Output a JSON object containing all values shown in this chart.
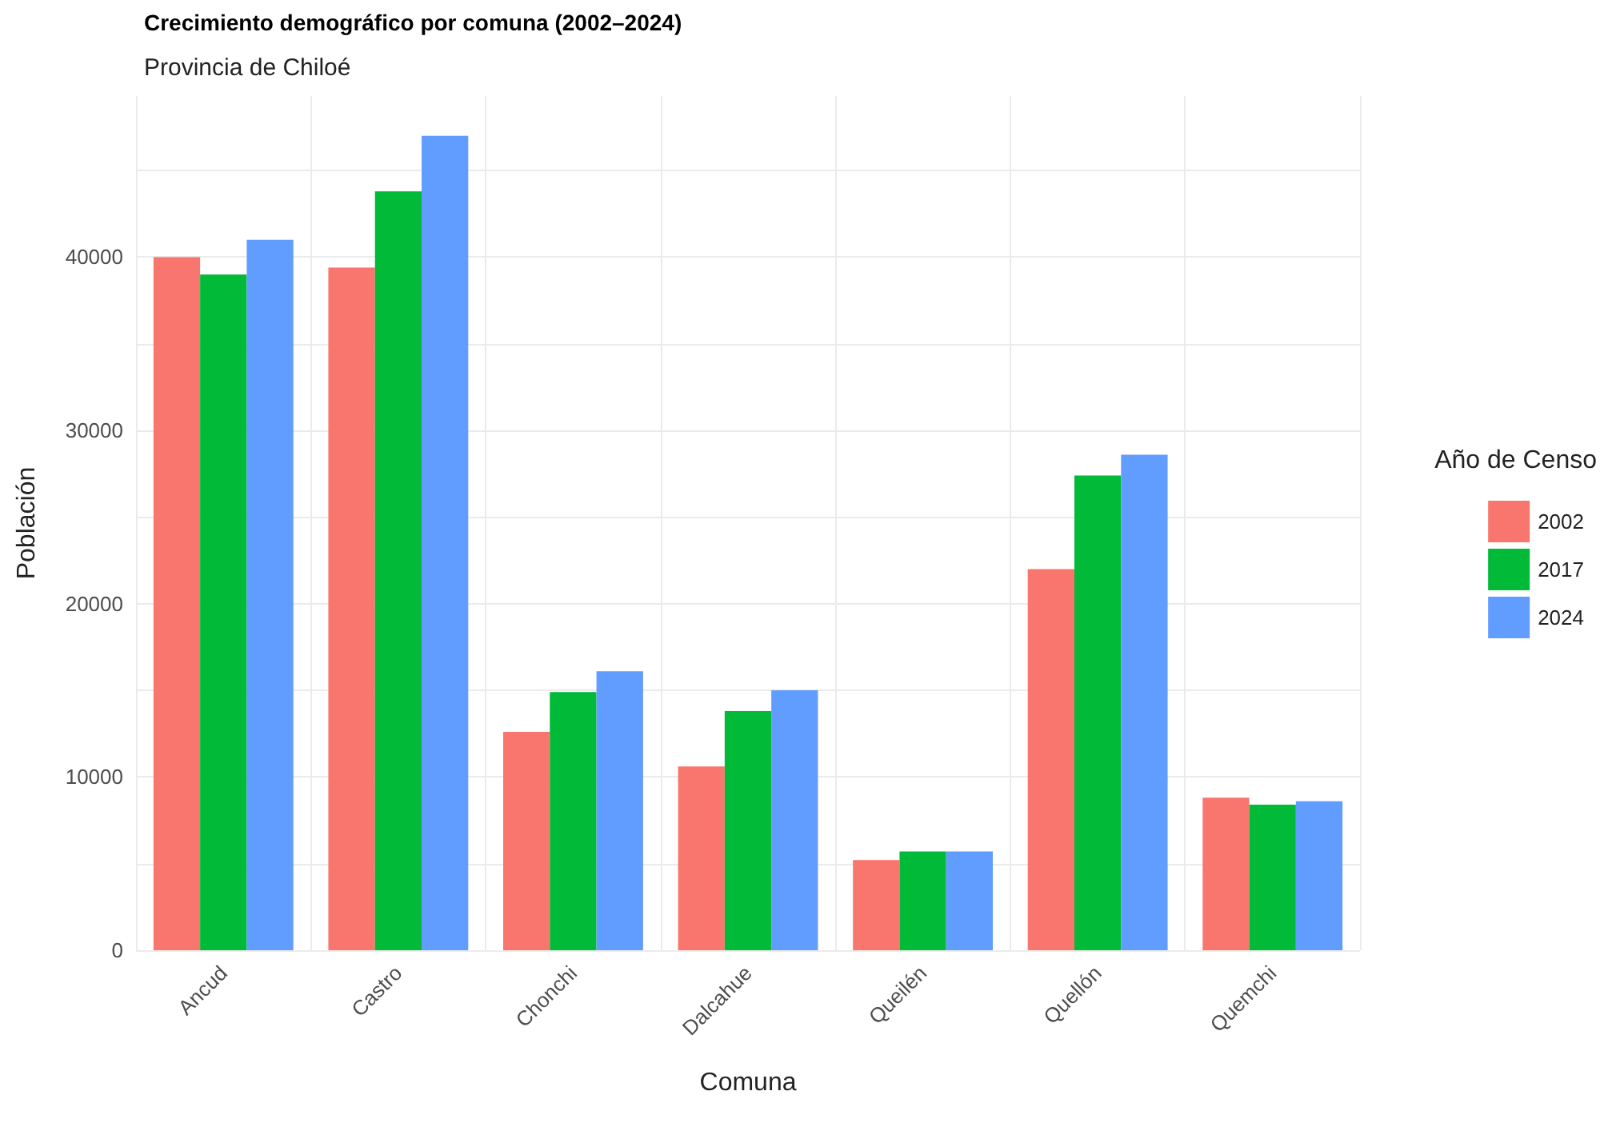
{
  "chart_data": {
    "type": "bar",
    "title": "Crecimiento demográfico por comuna (2002–2024)",
    "subtitle": "Provincia de Chiloé",
    "xlabel": "Comuna",
    "ylabel": "Población",
    "legend_title": "Año de Censo",
    "categories": [
      "Ancud",
      "Castro",
      "Chonchi",
      "Dalcahue",
      "Queilén",
      "Quellón",
      "Quemchi"
    ],
    "series": [
      {
        "name": "2002",
        "color": "#f8766d",
        "values": [
          40000,
          39400,
          12600,
          10600,
          5200,
          22000,
          8800
        ]
      },
      {
        "name": "2017",
        "color": "#00ba38",
        "values": [
          39000,
          43800,
          14900,
          13800,
          5700,
          27400,
          8400
        ]
      },
      {
        "name": "2024",
        "color": "#619cff",
        "values": [
          41000,
          47000,
          16100,
          15000,
          5700,
          28600,
          8600
        ]
      }
    ],
    "ylim": [
      0,
      49300
    ],
    "yticks": [
      0,
      {
        "value": 5000,
        "label": null
      },
      10000,
      {
        "value": 15000,
        "label": null
      },
      20000,
      {
        "value": 25000,
        "label": null
      },
      30000,
      {
        "value": 35000,
        "label": null
      },
      40000,
      {
        "value": 45000,
        "label": null
      }
    ],
    "grid": true,
    "legend": "right"
  }
}
